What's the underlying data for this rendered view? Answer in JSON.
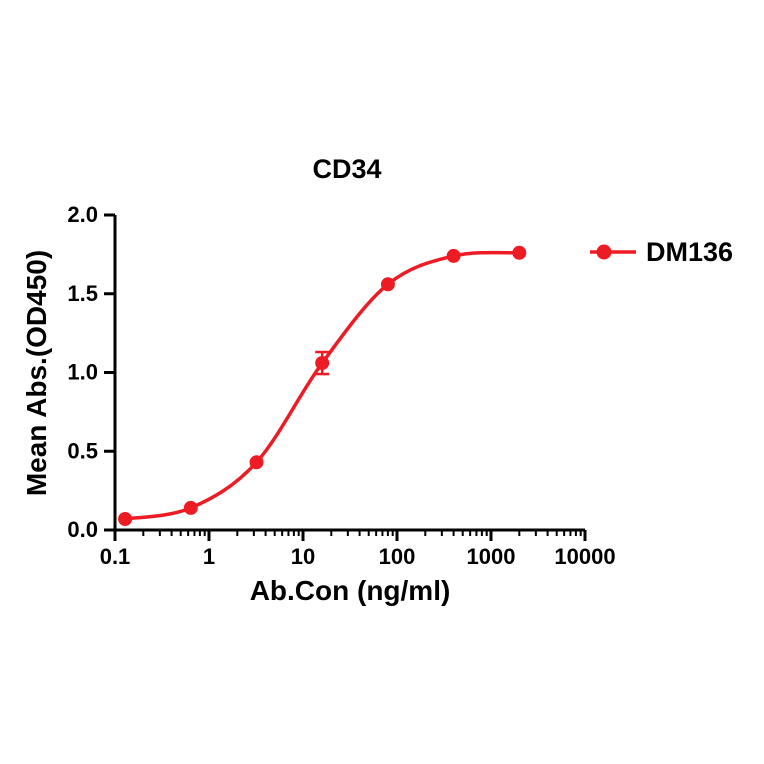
{
  "title": "CD34",
  "legend": {
    "label": "DM136",
    "marker": "filled-circle",
    "color": "#ed1c24"
  },
  "chart_data": {
    "type": "line",
    "title": "CD34",
    "xlabel": "Ab.Con (ng/ml)",
    "ylabel": "Mean Abs.(OD450)",
    "x_scale": "log10",
    "xlim": [
      0.1,
      10000
    ],
    "ylim": [
      0.0,
      2.0
    ],
    "x_ticks": [
      0.1,
      1,
      10,
      100,
      1000,
      10000
    ],
    "x_tick_labels": [
      "0.1",
      "1",
      "10",
      "100",
      "1000",
      "10000"
    ],
    "y_ticks": [
      0.0,
      0.5,
      1.0,
      1.5,
      2.0
    ],
    "y_tick_labels": [
      "0.0",
      "0.5",
      "1.0",
      "1.5",
      "2.0"
    ],
    "grid": false,
    "legend_position": "right",
    "series": [
      {
        "name": "DM136",
        "color": "#ed1c24",
        "marker": "circle",
        "x": [
          0.128,
          0.64,
          3.2,
          16,
          80,
          400,
          2000
        ],
        "y": [
          0.07,
          0.14,
          0.43,
          1.06,
          1.56,
          1.74,
          1.76
        ],
        "y_err": [
          0,
          0,
          0,
          0.07,
          0,
          0,
          0
        ]
      }
    ]
  }
}
